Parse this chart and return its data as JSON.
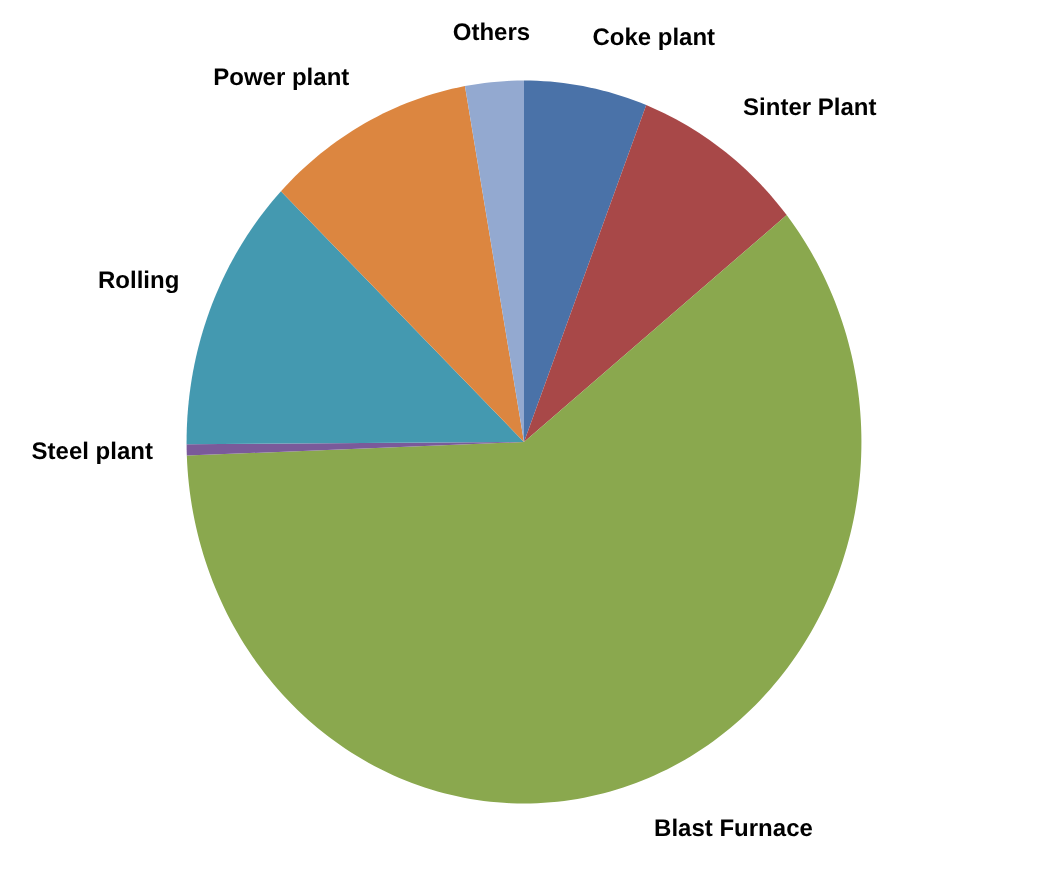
{
  "chart_data": {
    "type": "pie",
    "categories": [
      "Coke plant",
      "Sinter Plant",
      "Blast Furnace",
      "Steel plant",
      "Rolling",
      "Power plant",
      "Others"
    ],
    "values": [
      5.9,
      8.3,
      60.2,
      0.5,
      12.3,
      10.0,
      2.8
    ],
    "colors": [
      "#4a72a8",
      "#a84848",
      "#8aa84e",
      "#7a5a9a",
      "#4499b0",
      "#dc8640",
      "#93a9d0"
    ]
  }
}
